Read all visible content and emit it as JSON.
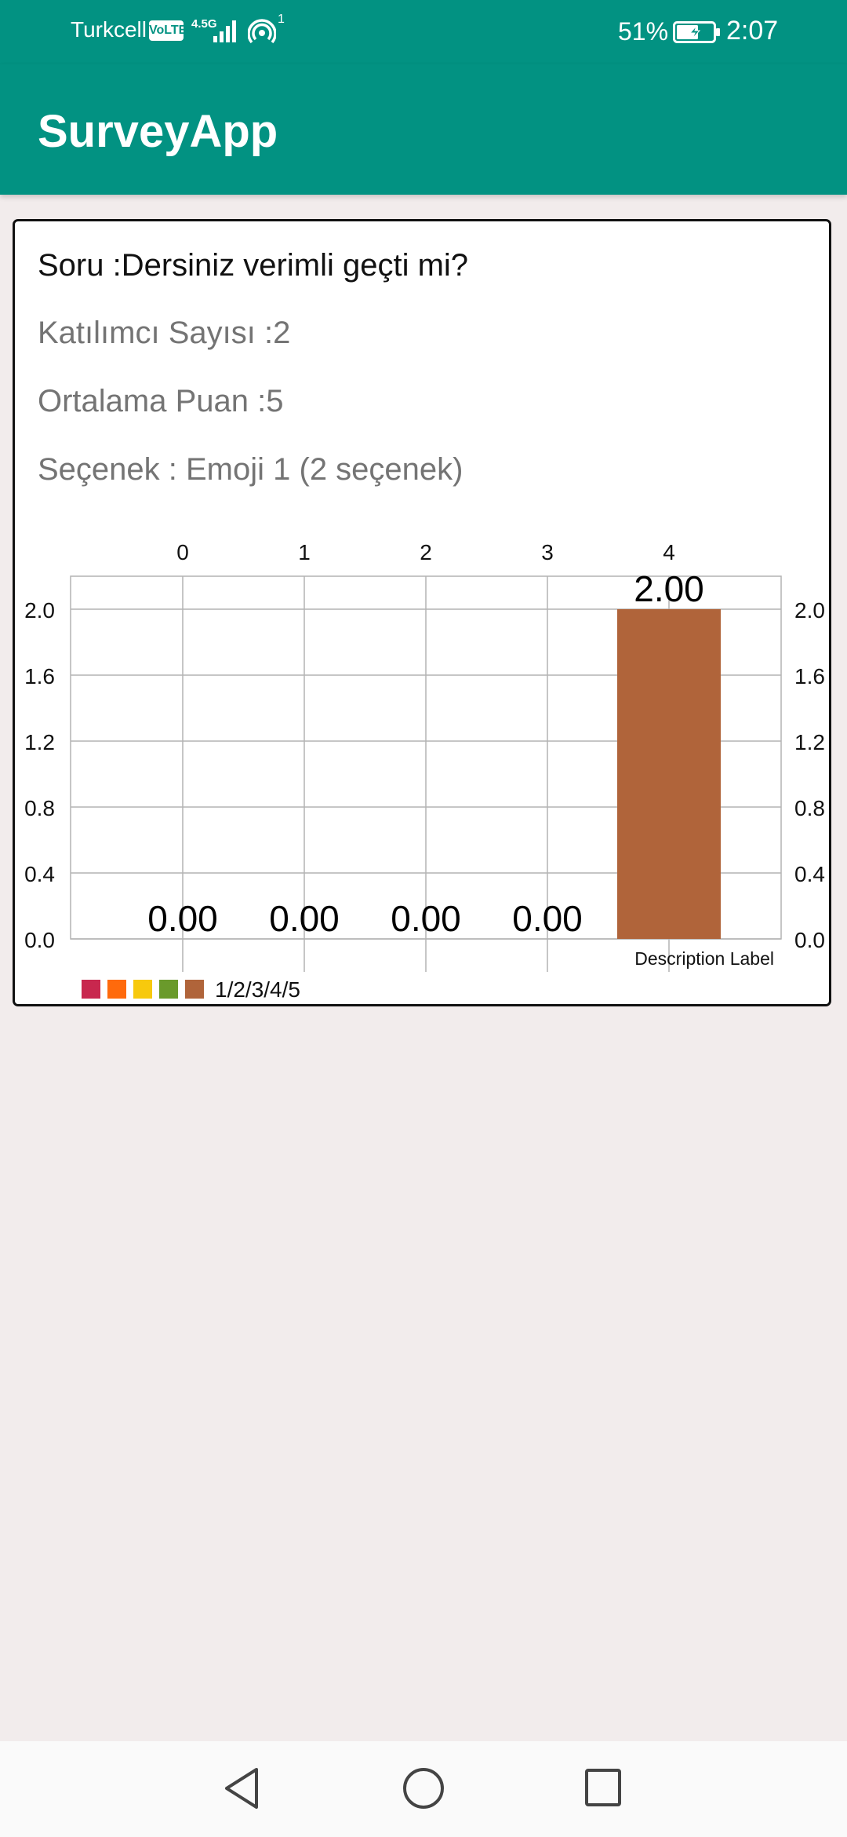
{
  "status_bar": {
    "carrier": "Turkcell",
    "volte": "VoLTE",
    "network": "4.5G",
    "hotspot_count": "1",
    "battery": "51%",
    "time": "2:07"
  },
  "app_bar": {
    "title": "SurveyApp"
  },
  "survey": {
    "question": "Soru :Dersiniz verimli geçti mi?",
    "participants": "Katılımcı Sayısı :2",
    "average": "Ortalama Puan :5",
    "option": "Seçenek : Emoji 1 (2 seçenek)"
  },
  "chart_data": {
    "type": "bar",
    "categories": [
      "0",
      "1",
      "2",
      "3",
      "4"
    ],
    "values": [
      0,
      0,
      0,
      0,
      2
    ],
    "value_labels": [
      "0.00",
      "0.00",
      "0.00",
      "0.00",
      "2.00"
    ],
    "y_ticks": [
      "0.0",
      "0.4",
      "0.8",
      "1.2",
      "1.6",
      "2.0"
    ],
    "ylim": [
      0,
      2.2
    ],
    "bar_color": "#b0643a",
    "description": "Description Label",
    "legend": {
      "label": "1/2/3/4/5",
      "colors": [
        "#c8274e",
        "#ff6a0c",
        "#f7c90d",
        "#6a9a2b",
        "#b0643a"
      ]
    },
    "grid": true,
    "x_axis_position": "top",
    "y_axis": "both sides"
  },
  "icons": {
    "signal": "signal-icon",
    "hotspot": "hotspot-icon",
    "battery": "battery-charging-icon",
    "back": "back-triangle-icon",
    "home": "home-circle-icon",
    "recents": "recents-square-icon"
  },
  "colors": {
    "primary": "#029282",
    "background": "#f2ecec"
  }
}
